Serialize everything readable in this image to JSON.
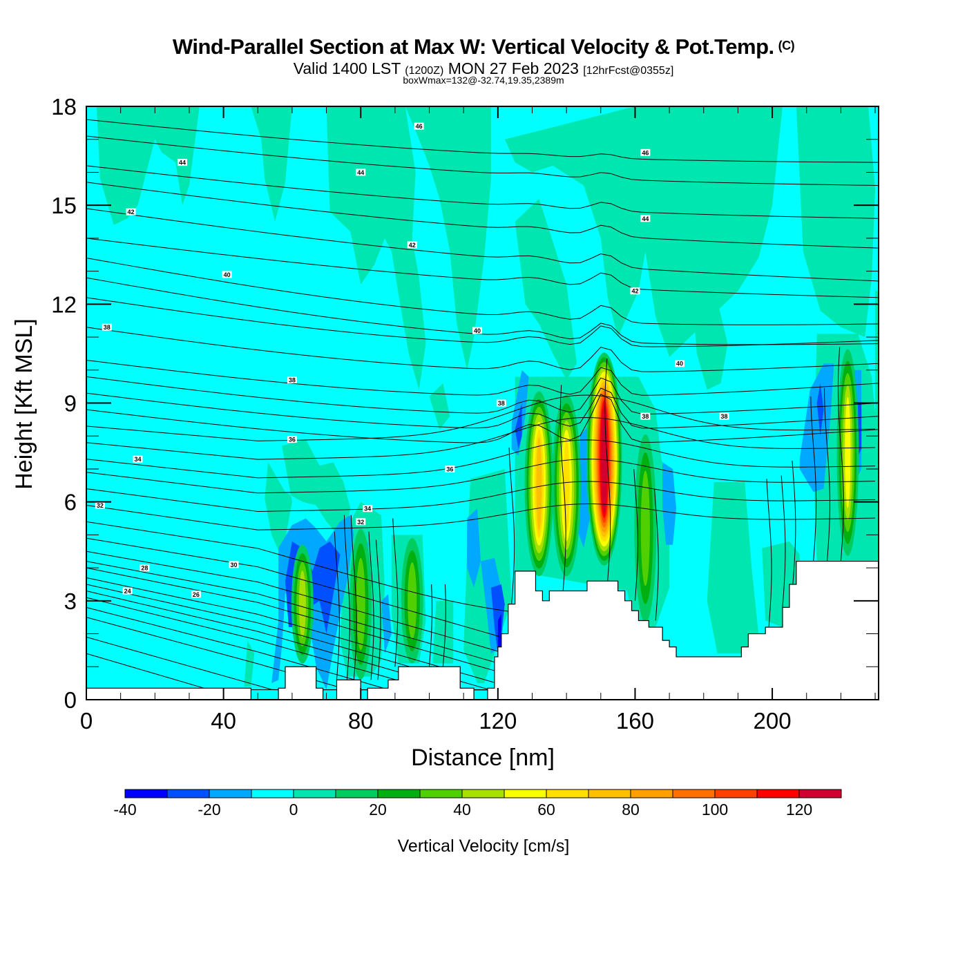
{
  "header": {
    "title": "Wind-Parallel Section at Max W: Vertical Velocity & Pot.Temp.",
    "copyright": "(C)",
    "valid_prefix": "Valid 1400 LST",
    "valid_utc": "(1200Z)",
    "valid_date": "MON 27 Feb 2023",
    "forecast": "[12hrFcst@0355z]",
    "boxwmax": "boxWmax=132@-32.74,19.35,2389m"
  },
  "chart_data": {
    "type": "heatmap",
    "title": "Wind-Parallel Section at Max W: Vertical Velocity & Pot.Temp.",
    "xlabel": "Distance [nm]",
    "ylabel": "Height [Kft MSL]",
    "xlim": [
      0,
      231
    ],
    "ylim": [
      0,
      18
    ],
    "x_ticks": [
      "0",
      "40",
      "80",
      "120",
      "160",
      "200"
    ],
    "x_tick_values": [
      0,
      40,
      80,
      120,
      160,
      200
    ],
    "y_ticks": [
      "0",
      "3",
      "6",
      "9",
      "12",
      "15",
      "18"
    ],
    "y_tick_values": [
      0,
      3,
      6,
      9,
      12,
      15,
      18
    ],
    "colorbar": {
      "title": "Vertical Velocity [cm/s]",
      "bounds": [
        -40,
        -30,
        -20,
        -10,
        0,
        10,
        20,
        30,
        40,
        50,
        60,
        70,
        80,
        90,
        100,
        110,
        120,
        130
      ],
      "labels": [
        "-40",
        "-20",
        "0",
        "20",
        "40",
        "60",
        "80",
        "100",
        "120"
      ],
      "label_values": [
        -40,
        -20,
        0,
        20,
        40,
        60,
        80,
        100,
        120
      ],
      "colors": [
        "#0000ff",
        "#0050ff",
        "#00a8ff",
        "#00ffff",
        "#00e6b0",
        "#00cc60",
        "#00b010",
        "#50d000",
        "#a8e000",
        "#f8ff00",
        "#ffe000",
        "#ffc000",
        "#ffa000",
        "#ff7000",
        "#ff4000",
        "#ff0000",
        "#d00030"
      ],
      "orientation": "horizontal",
      "placement": "bottom"
    },
    "contour_field": "Potential Temperature",
    "contour_labels": [
      {
        "text": "46",
        "x": 97,
        "y": 17.4
      },
      {
        "text": "46",
        "x": 163,
        "y": 16.6
      },
      {
        "text": "44",
        "x": 28,
        "y": 16.3
      },
      {
        "text": "44",
        "x": 80,
        "y": 16.0
      },
      {
        "text": "44",
        "x": 163,
        "y": 14.6
      },
      {
        "text": "42",
        "x": 13,
        "y": 14.8
      },
      {
        "text": "42",
        "x": 95,
        "y": 13.8
      },
      {
        "text": "42",
        "x": 160,
        "y": 12.4
      },
      {
        "text": "40",
        "x": 41,
        "y": 12.9
      },
      {
        "text": "40",
        "x": 114,
        "y": 11.2
      },
      {
        "text": "40",
        "x": 173,
        "y": 10.2
      },
      {
        "text": "38",
        "x": 6,
        "y": 11.3
      },
      {
        "text": "38",
        "x": 60,
        "y": 9.7
      },
      {
        "text": "38",
        "x": 121,
        "y": 9.0
      },
      {
        "text": "38",
        "x": 163,
        "y": 8.6
      },
      {
        "text": "38",
        "x": 186,
        "y": 8.6
      },
      {
        "text": "36",
        "x": 60,
        "y": 7.9
      },
      {
        "text": "36",
        "x": 106,
        "y": 7.0
      },
      {
        "text": "34",
        "x": 15,
        "y": 7.3
      },
      {
        "text": "34",
        "x": 82,
        "y": 5.8
      },
      {
        "text": "32",
        "x": 4,
        "y": 5.9
      },
      {
        "text": "32",
        "x": 80,
        "y": 5.4
      },
      {
        "text": "30",
        "x": 43,
        "y": 4.1
      },
      {
        "text": "28",
        "x": 17,
        "y": 4.0
      },
      {
        "text": "26",
        "x": 32,
        "y": 3.2
      },
      {
        "text": "24",
        "x": 12,
        "y": 3.3
      }
    ],
    "w_cores": [
      {
        "x": 63,
        "y_bottom": 1.0,
        "y_top": 4.8,
        "peak_cms": 40
      },
      {
        "x": 80,
        "y_bottom": 0.5,
        "y_top": 5.3,
        "peak_cms": 30
      },
      {
        "x": 95,
        "y_bottom": 1.0,
        "y_top": 5.0,
        "peak_cms": 30
      },
      {
        "x": 132,
        "y_bottom": 3.6,
        "y_top": 9.5,
        "peak_cms": 70
      },
      {
        "x": 140,
        "y_bottom": 3.6,
        "y_top": 9.4,
        "peak_cms": 60
      },
      {
        "x": 151,
        "y_bottom": 3.6,
        "y_top": 10.4,
        "peak_cms": 132
      },
      {
        "x": 163,
        "y_bottom": 2.2,
        "y_top": 8.2,
        "peak_cms": 30
      },
      {
        "x": 222,
        "y_bottom": 4.2,
        "y_top": 10.8,
        "peak_cms": 50
      }
    ],
    "down_cores": [
      {
        "x": 62,
        "y_bottom": 2.0,
        "y_top": 5.3,
        "min_cms": -30
      },
      {
        "x": 72,
        "y_bottom": 1.0,
        "y_top": 5.0,
        "min_cms": -30
      },
      {
        "x": 122,
        "y_bottom": 1.2,
        "y_top": 3.6,
        "min_cms": -40
      },
      {
        "x": 128,
        "y_bottom": 7.6,
        "y_top": 10.0,
        "min_cms": -20
      },
      {
        "x": 213,
        "y_bottom": 7.0,
        "y_top": 10.5,
        "min_cms": -20
      }
    ],
    "terrain_kft": [
      [
        0,
        0.35
      ],
      [
        48,
        0.35
      ],
      [
        48,
        0.0
      ],
      [
        56,
        0.0
      ],
      [
        56,
        0.35
      ],
      [
        58,
        0.35
      ],
      [
        58,
        1.0
      ],
      [
        67,
        1.0
      ],
      [
        67,
        0.35
      ],
      [
        69,
        0.35
      ],
      [
        69,
        0.0
      ],
      [
        73,
        0.0
      ],
      [
        73,
        0.6
      ],
      [
        80,
        0.6
      ],
      [
        80,
        0.0
      ],
      [
        82,
        0.0
      ],
      [
        82,
        0.35
      ],
      [
        88,
        0.35
      ],
      [
        88,
        0.6
      ],
      [
        91,
        0.6
      ],
      [
        91,
        1.0
      ],
      [
        109,
        1.0
      ],
      [
        109,
        0.35
      ],
      [
        113,
        0.35
      ],
      [
        113,
        0.0
      ],
      [
        117,
        0.0
      ],
      [
        117,
        0.35
      ],
      [
        119,
        0.35
      ],
      [
        119,
        1.3
      ],
      [
        120,
        1.3
      ],
      [
        120,
        1.6
      ],
      [
        121,
        1.6
      ],
      [
        121,
        2.0
      ],
      [
        123,
        2.0
      ],
      [
        123,
        2.9
      ],
      [
        125,
        2.9
      ],
      [
        125,
        3.9
      ],
      [
        131,
        3.9
      ],
      [
        131,
        3.3
      ],
      [
        133,
        3.3
      ],
      [
        133,
        3.0
      ],
      [
        135,
        3.0
      ],
      [
        135,
        3.3
      ],
      [
        146,
        3.3
      ],
      [
        146,
        3.6
      ],
      [
        155,
        3.6
      ],
      [
        155,
        3.3
      ],
      [
        157,
        3.3
      ],
      [
        157,
        3.0
      ],
      [
        159,
        3.0
      ],
      [
        159,
        2.7
      ],
      [
        161,
        2.7
      ],
      [
        161,
        2.4
      ],
      [
        164,
        2.4
      ],
      [
        164,
        2.2
      ],
      [
        168,
        2.2
      ],
      [
        168,
        1.8
      ],
      [
        170,
        1.8
      ],
      [
        170,
        1.6
      ],
      [
        172,
        1.6
      ],
      [
        172,
        1.3
      ],
      [
        191,
        1.3
      ],
      [
        191,
        1.6
      ],
      [
        193,
        1.6
      ],
      [
        193,
        2.0
      ],
      [
        198,
        2.0
      ],
      [
        198,
        2.2
      ],
      [
        203,
        2.2
      ],
      [
        203,
        2.8
      ],
      [
        205,
        2.8
      ],
      [
        205,
        3.5
      ],
      [
        207,
        3.5
      ],
      [
        207,
        4.2
      ],
      [
        231,
        4.2
      ],
      [
        231,
        0
      ],
      [
        0,
        0
      ]
    ]
  }
}
